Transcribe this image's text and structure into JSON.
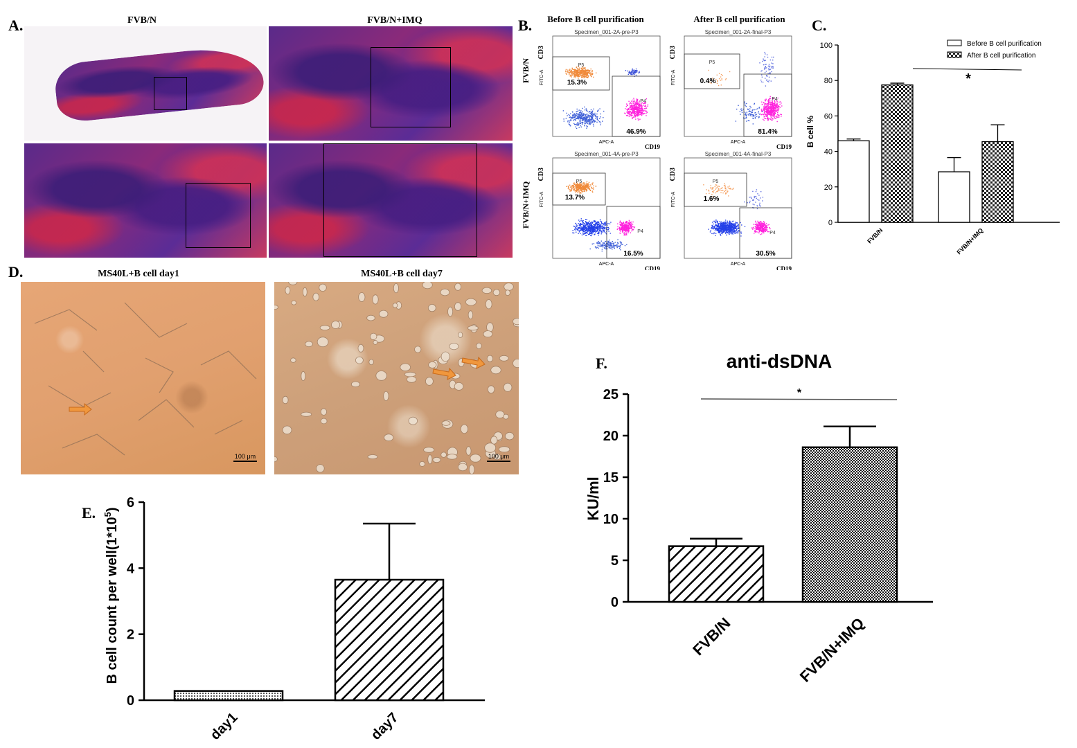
{
  "panel_a": {
    "letter": "A.",
    "title_left": "FVB/N",
    "title_right": "FVB/N+IMQ"
  },
  "panel_b": {
    "letter": "B.",
    "title_before": "Before B cell purification",
    "title_after": "After B cell purification",
    "row_labels": [
      "FVB/N",
      "FVB/N+IMQ"
    ],
    "axis_y": "CD3",
    "axis_y_small": "FITC-A",
    "axis_x": "CD19",
    "axis_x_small": "APC-A",
    "gate_p5": "P5",
    "gate_p4": "P4",
    "plots": [
      {
        "specimen": "Specimen_001-2A-pre-P3",
        "p5": "15.3%",
        "p4": "46.9%"
      },
      {
        "specimen": "Specimen_001-2A-final-P3",
        "p5": "0.4%",
        "p4": "81.4%"
      },
      {
        "specimen": "Specimen_001-4A-pre-P3",
        "p5": "13.7%",
        "p4": "16.5%"
      },
      {
        "specimen": "Specimen_001-4A-final-P3",
        "p5": "1.6%",
        "p4": "30.5%"
      }
    ]
  },
  "panel_d": {
    "letter": "D.",
    "title_left": "MS40L+B cell day1",
    "title_right": "MS40L+B cell day7",
    "scalebar": "100 μm"
  },
  "chart_data": [
    {
      "panel": "C.",
      "type": "bar",
      "categories": [
        "FVB/N",
        "FVB/N+IMQ"
      ],
      "series": [
        {
          "name": "Before B cell purification",
          "values": [
            46,
            28.5
          ],
          "errors": [
            1,
            8
          ],
          "color": "#ffffff"
        },
        {
          "name": "After B cell purification",
          "values": [
            77.5,
            45.5
          ],
          "errors": [
            1,
            9.5
          ],
          "color": "#444444"
        }
      ],
      "title": "",
      "xlabel": "",
      "ylabel": "B cell %",
      "ylim": [
        0,
        100
      ],
      "yticks": [
        0,
        20,
        40,
        60,
        80,
        100
      ],
      "legend": "top-right",
      "annotation": "*"
    },
    {
      "panel": "E.",
      "type": "bar",
      "categories": [
        "day1",
        "day7"
      ],
      "values": [
        0.28,
        3.65
      ],
      "errors": [
        0,
        1.7
      ],
      "title": "",
      "xlabel": "",
      "ylabel": "B cell count per well(1*10",
      "ylabel_sup": "5",
      "ylabel_end": ")",
      "ylim": [
        0,
        6
      ],
      "yticks": [
        0,
        2,
        4,
        6
      ]
    },
    {
      "panel": "F.",
      "type": "bar",
      "categories": [
        "FVB/N",
        "FVB/N+IMQ"
      ],
      "values": [
        6.7,
        18.6
      ],
      "errors": [
        0.9,
        2.5
      ],
      "title": "anti-dsDNA",
      "xlabel": "",
      "ylabel": "KU/ml",
      "ylim": [
        0,
        25
      ],
      "yticks": [
        0,
        5,
        10,
        15,
        20,
        25
      ],
      "annotation": "*"
    }
  ]
}
